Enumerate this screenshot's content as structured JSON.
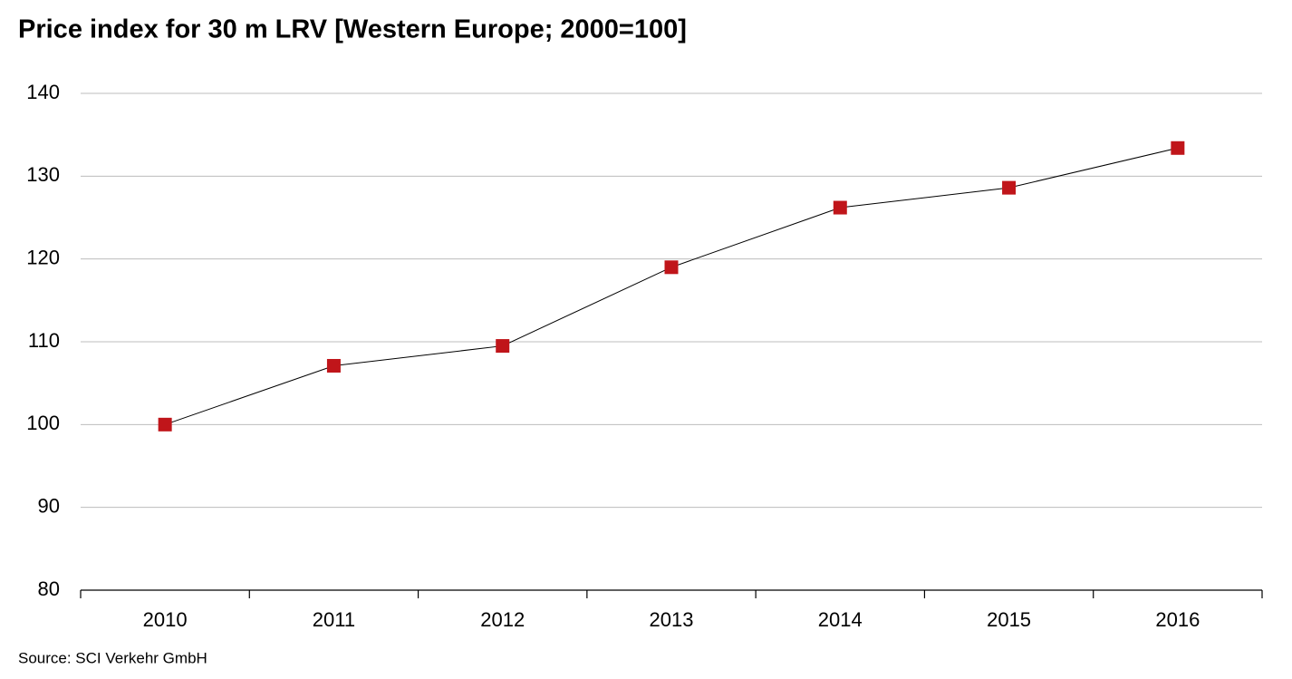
{
  "chart_data": {
    "type": "line",
    "title": "Price index for 30 m LRV [Western Europe; 2000=100]",
    "source": "Source: SCI Verkehr GmbH",
    "categories": [
      "2010",
      "2011",
      "2012",
      "2013",
      "2014",
      "2015",
      "2016"
    ],
    "values": [
      100,
      107.1,
      109.5,
      119.0,
      126.2,
      128.6,
      133.4
    ],
    "color": "#c0151a",
    "line_color": "#000000",
    "ylim": [
      80,
      140
    ],
    "yticks": [
      80,
      90,
      100,
      110,
      120,
      130,
      140
    ],
    "grid": true
  }
}
